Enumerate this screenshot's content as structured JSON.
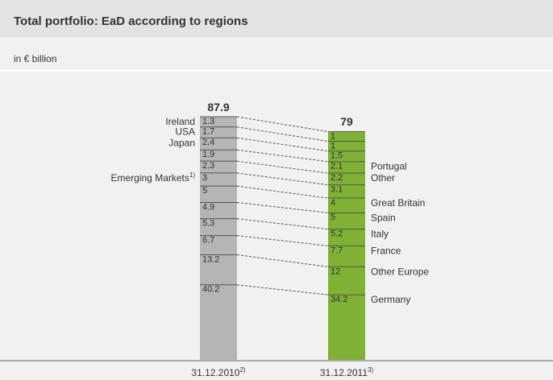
{
  "chart_data": {
    "type": "stacked_column",
    "title": "Total portfolio: EaD according to regions",
    "subtitle": "in € billion",
    "bars": [
      {
        "name": "31.12.2010",
        "note": "2)",
        "total": 87.9,
        "color": "#b5b5b5",
        "label_side": "left",
        "values": [
          1.3,
          1.7,
          2.4,
          1.9,
          2.3,
          3.0,
          5.0,
          4.9,
          5.3,
          6.7,
          13.2,
          40.2
        ],
        "labels": [
          "Ireland",
          "USA",
          "Japan",
          null,
          null,
          "Emerging Markets",
          null,
          null,
          null,
          null,
          null,
          null
        ],
        "label_notes": [
          null,
          null,
          null,
          null,
          null,
          "1)",
          null,
          null,
          null,
          null,
          null,
          null
        ]
      },
      {
        "name": "31.12.2011",
        "note": "3)",
        "total": 79.0,
        "color": "#7fb135",
        "label_side": "right",
        "values": [
          1.0,
          1.0,
          1.5,
          2.1,
          2.2,
          3.1,
          4.0,
          5.0,
          5.2,
          7.7,
          12.0,
          34.2
        ],
        "labels": [
          null,
          null,
          null,
          "Portugal",
          "Other",
          null,
          "Great Britain",
          "Spain",
          "Italy",
          "France",
          "Other Europe",
          "Germany"
        ],
        "label_notes": [
          null,
          null,
          null,
          null,
          null,
          null,
          null,
          null,
          null,
          null,
          null,
          null
        ]
      }
    ]
  }
}
